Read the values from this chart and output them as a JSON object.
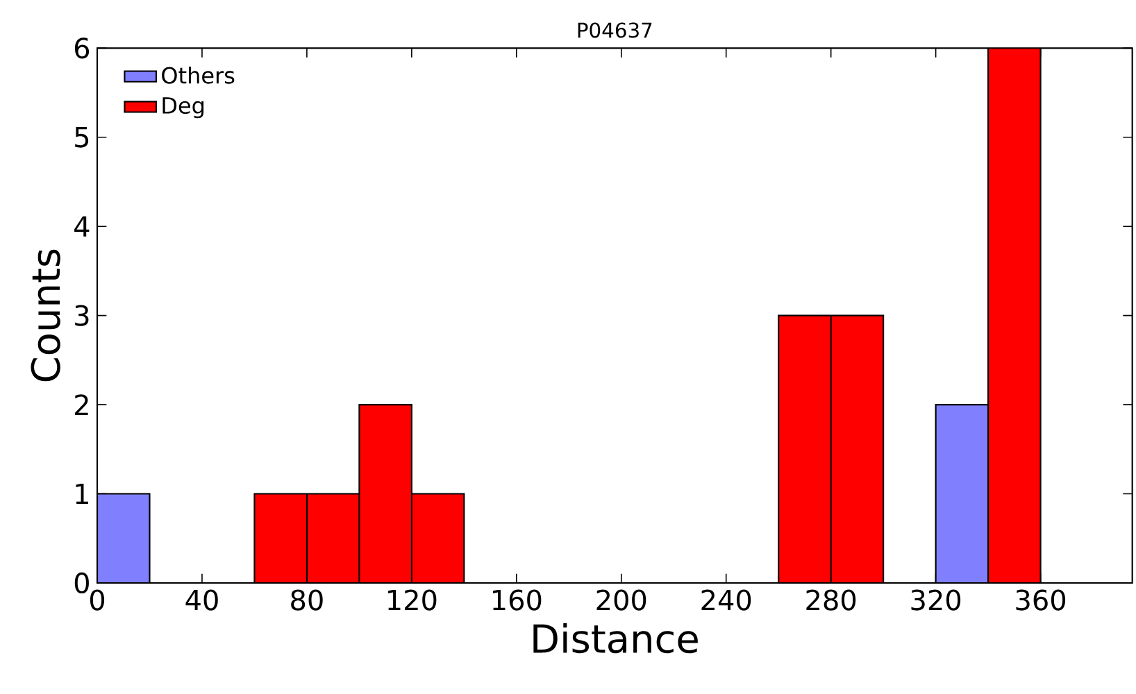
{
  "chart_data": {
    "type": "histogram",
    "title": "P04637",
    "xlabel": "Distance",
    "ylabel": "Counts",
    "bins": [
      0,
      20,
      40,
      60,
      80,
      100,
      120,
      140,
      160,
      180,
      200,
      220,
      240,
      260,
      280,
      300,
      320,
      340,
      360
    ],
    "series": [
      {
        "name": "Others",
        "color": "#8080ff",
        "values": [
          1,
          0,
          0,
          0,
          0,
          0,
          0,
          0,
          0,
          0,
          0,
          0,
          0,
          0,
          0,
          0,
          2,
          0
        ]
      },
      {
        "name": "Deg",
        "color": "#ff0000",
        "values": [
          0,
          0,
          0,
          1,
          1,
          2,
          1,
          0,
          0,
          0,
          0,
          0,
          0,
          3,
          3,
          0,
          0,
          6
        ]
      }
    ],
    "xlim": [
      0,
      395
    ],
    "ylim": [
      0,
      6
    ],
    "xticks": [
      0,
      40,
      80,
      120,
      160,
      200,
      240,
      280,
      320,
      360
    ],
    "yticks": [
      0,
      1,
      2,
      3,
      4,
      5,
      6
    ],
    "legend": "top left"
  }
}
